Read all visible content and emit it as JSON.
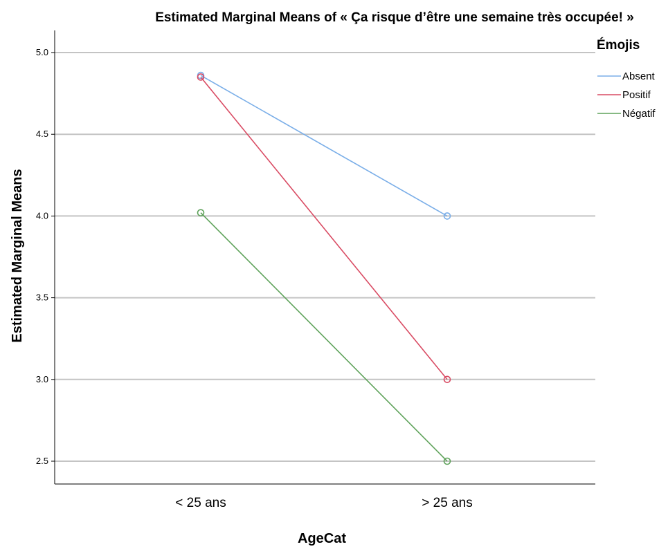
{
  "chart_data": {
    "type": "line",
    "title": "Estimated Marginal Means of « Ça risque d’être une semaine très occupée! »",
    "xlabel": "AgeCat",
    "ylabel": "Estimated Marginal Means",
    "categories": [
      "< 25 ans",
      "> 25 ans"
    ],
    "ylim": [
      2.45,
      5.15
    ],
    "yticks": [
      2.5,
      3.0,
      3.5,
      4.0,
      4.5,
      5.0
    ],
    "ytick_labels": [
      "2.5",
      "3.0",
      "3.5",
      "4.0",
      "4.5",
      "5.0"
    ],
    "grid": true,
    "legend": {
      "title": "Émojis",
      "position": "top-right"
    },
    "series": [
      {
        "name": "Absent",
        "values": [
          4.86,
          4.0
        ],
        "color": "#7aaee8"
      },
      {
        "name": "Positif",
        "values": [
          4.85,
          3.0
        ],
        "color": "#d94b63"
      },
      {
        "name": "Négatif",
        "values": [
          4.02,
          2.5
        ],
        "color": "#5ea25a"
      }
    ]
  }
}
